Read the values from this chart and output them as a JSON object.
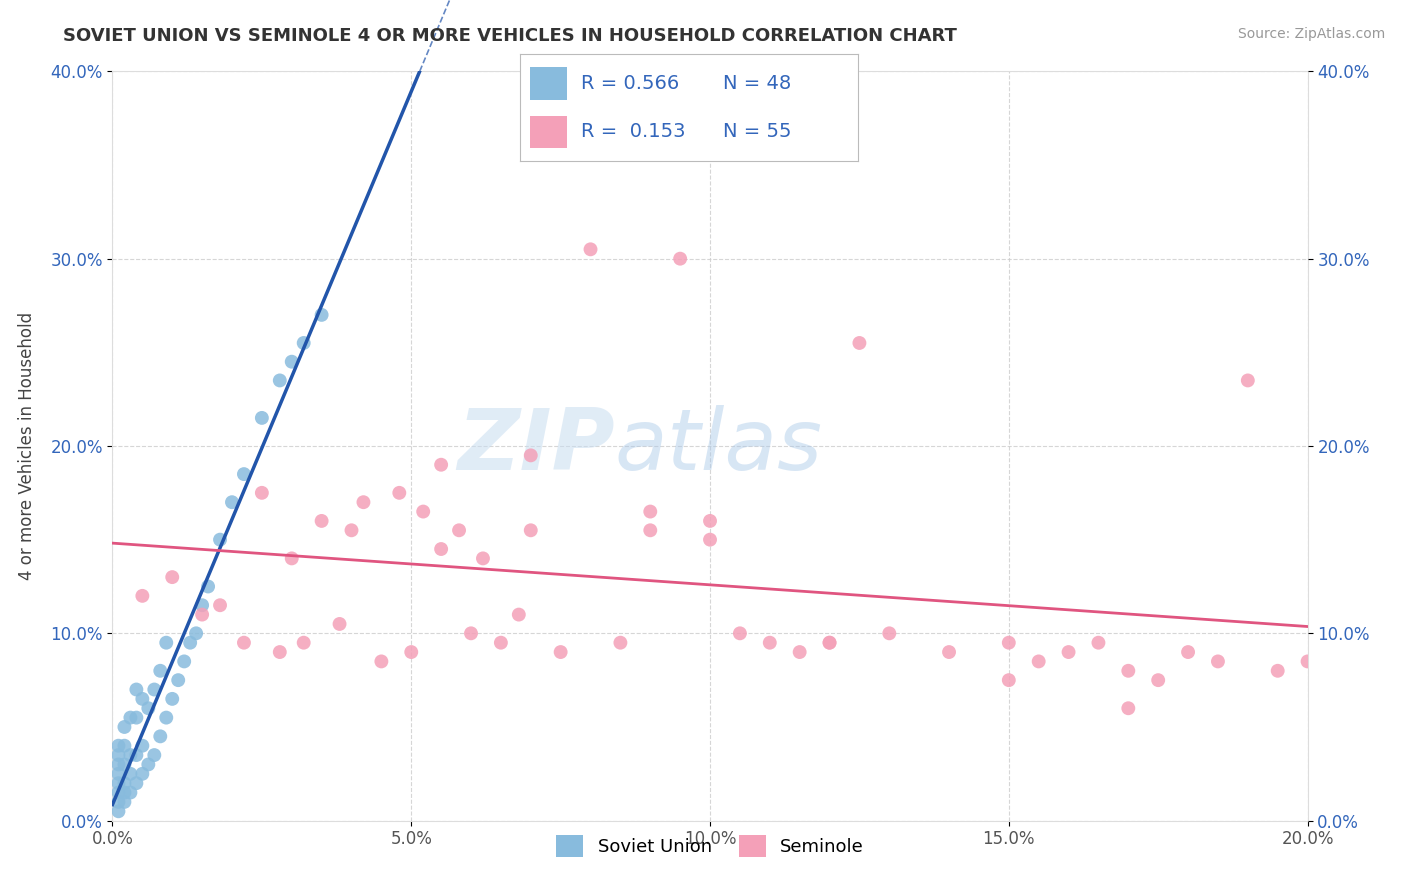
{
  "title": "SOVIET UNION VS SEMINOLE 4 OR MORE VEHICLES IN HOUSEHOLD CORRELATION CHART",
  "source": "Source: ZipAtlas.com",
  "ylabel": "4 or more Vehicles in Household",
  "xlim": [
    0.0,
    0.2
  ],
  "ylim": [
    0.0,
    0.4
  ],
  "xticks": [
    0.0,
    0.05,
    0.1,
    0.15,
    0.2
  ],
  "yticks": [
    0.0,
    0.1,
    0.2,
    0.3,
    0.4
  ],
  "xtick_labels": [
    "0.0%",
    "5.0%",
    "10.0%",
    "15.0%",
    "20.0%"
  ],
  "ytick_labels": [
    "0.0%",
    "10.0%",
    "20.0%",
    "30.0%",
    "40.0%"
  ],
  "legend_labels": [
    "Soviet Union",
    "Seminole"
  ],
  "r_soviet": 0.566,
  "n_soviet": 48,
  "r_seminole": 0.153,
  "n_seminole": 55,
  "blue_color": "#88bbdd",
  "pink_color": "#f4a0b8",
  "blue_line_color": "#2255aa",
  "pink_line_color": "#e05580",
  "watermark_zip": "ZIP",
  "watermark_atlas": "atlas",
  "background_color": "#ffffff",
  "grid_color": "#cccccc",
  "soviet_x": [
    0.001,
    0.001,
    0.001,
    0.001,
    0.001,
    0.001,
    0.001,
    0.001,
    0.002,
    0.002,
    0.002,
    0.002,
    0.002,
    0.002,
    0.003,
    0.003,
    0.003,
    0.003,
    0.004,
    0.004,
    0.004,
    0.004,
    0.005,
    0.005,
    0.005,
    0.006,
    0.006,
    0.007,
    0.007,
    0.008,
    0.008,
    0.009,
    0.009,
    0.01,
    0.011,
    0.012,
    0.013,
    0.014,
    0.015,
    0.016,
    0.018,
    0.02,
    0.022,
    0.025,
    0.028,
    0.03,
    0.032,
    0.035
  ],
  "soviet_y": [
    0.005,
    0.01,
    0.015,
    0.02,
    0.025,
    0.03,
    0.035,
    0.04,
    0.01,
    0.015,
    0.02,
    0.03,
    0.04,
    0.05,
    0.015,
    0.025,
    0.035,
    0.055,
    0.02,
    0.035,
    0.055,
    0.07,
    0.025,
    0.04,
    0.065,
    0.03,
    0.06,
    0.035,
    0.07,
    0.045,
    0.08,
    0.055,
    0.095,
    0.065,
    0.075,
    0.085,
    0.095,
    0.1,
    0.115,
    0.125,
    0.15,
    0.17,
    0.185,
    0.215,
    0.235,
    0.245,
    0.255,
    0.27
  ],
  "seminole_x": [
    0.005,
    0.01,
    0.015,
    0.018,
    0.022,
    0.025,
    0.028,
    0.03,
    0.032,
    0.035,
    0.038,
    0.04,
    0.042,
    0.045,
    0.048,
    0.05,
    0.052,
    0.055,
    0.058,
    0.06,
    0.062,
    0.065,
    0.068,
    0.07,
    0.075,
    0.08,
    0.085,
    0.09,
    0.095,
    0.1,
    0.105,
    0.11,
    0.115,
    0.12,
    0.125,
    0.13,
    0.14,
    0.15,
    0.155,
    0.16,
    0.165,
    0.17,
    0.175,
    0.18,
    0.185,
    0.19,
    0.195,
    0.2,
    0.055,
    0.07,
    0.09,
    0.1,
    0.12,
    0.15,
    0.17
  ],
  "seminole_y": [
    0.12,
    0.13,
    0.11,
    0.115,
    0.095,
    0.175,
    0.09,
    0.14,
    0.095,
    0.16,
    0.105,
    0.155,
    0.17,
    0.085,
    0.175,
    0.09,
    0.165,
    0.145,
    0.155,
    0.1,
    0.14,
    0.095,
    0.11,
    0.195,
    0.09,
    0.305,
    0.095,
    0.155,
    0.3,
    0.16,
    0.1,
    0.095,
    0.09,
    0.095,
    0.255,
    0.1,
    0.09,
    0.095,
    0.085,
    0.09,
    0.095,
    0.08,
    0.075,
    0.09,
    0.085,
    0.235,
    0.08,
    0.085,
    0.19,
    0.155,
    0.165,
    0.15,
    0.095,
    0.075,
    0.06
  ]
}
